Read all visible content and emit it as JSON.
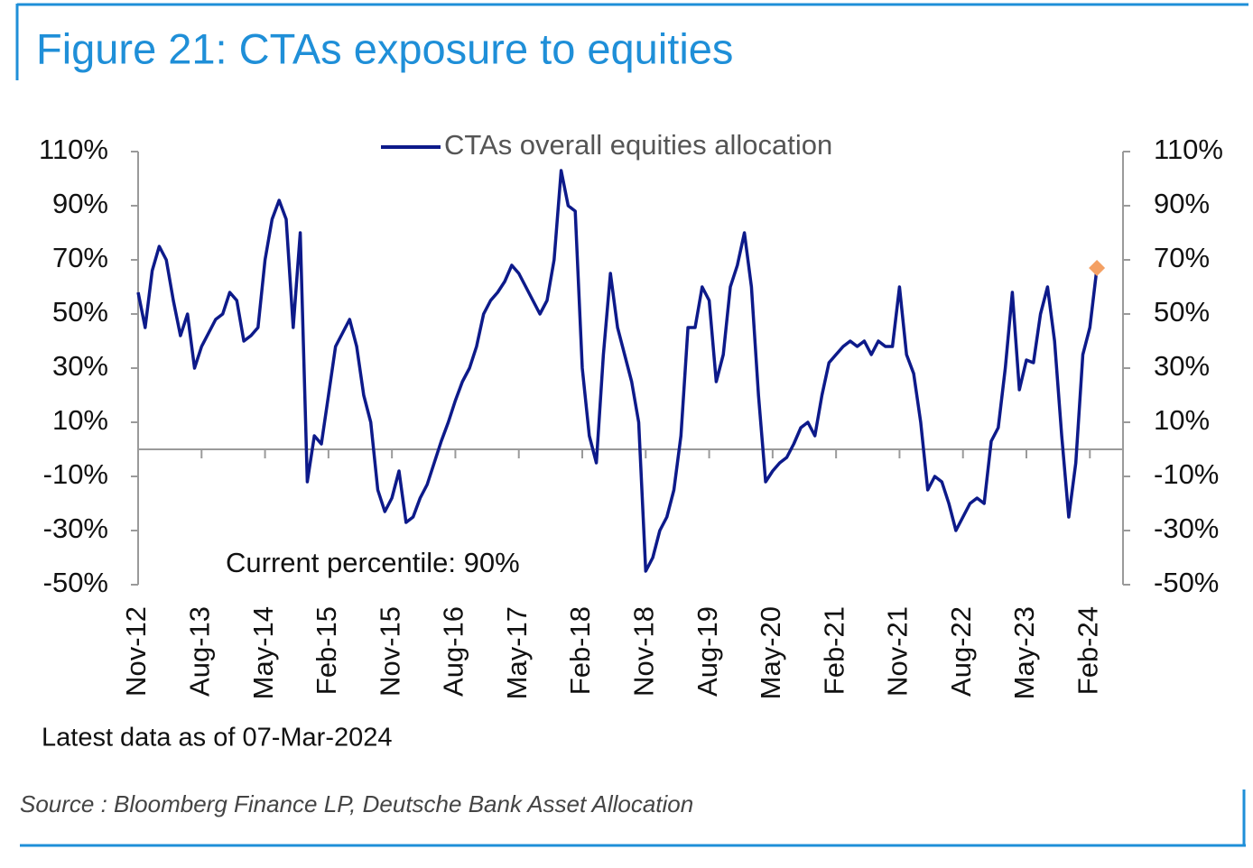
{
  "chart_data": {
    "type": "line",
    "title": "Figure 21: CTAs exposure to equities",
    "annotations": [
      "Current percentile: 90%",
      "Latest data as of 07-Mar-2024"
    ],
    "source": "Source : Bloomberg Finance LP, Deutsche Bank Asset Allocation",
    "categories": [
      "Nov-12",
      null,
      null,
      null,
      null,
      null,
      null,
      null,
      null,
      "Aug-13",
      null,
      null,
      null,
      null,
      null,
      null,
      null,
      null,
      "May-14",
      null,
      null,
      null,
      null,
      null,
      null,
      null,
      null,
      "Feb-15",
      null,
      null,
      null,
      null,
      null,
      null,
      null,
      null,
      "Nov-15",
      null,
      null,
      null,
      null,
      null,
      null,
      null,
      null,
      "Aug-16",
      null,
      null,
      null,
      null,
      null,
      null,
      null,
      null,
      "May-17",
      null,
      null,
      null,
      null,
      null,
      null,
      null,
      null,
      "Feb-18",
      null,
      null,
      null,
      null,
      null,
      null,
      null,
      null,
      "Nov-18",
      null,
      null,
      null,
      null,
      null,
      null,
      null,
      null,
      "Aug-19",
      null,
      null,
      null,
      null,
      null,
      null,
      null,
      null,
      "May-20",
      null,
      null,
      null,
      null,
      null,
      null,
      null,
      null,
      "Feb-21",
      null,
      null,
      null,
      null,
      null,
      null,
      null,
      null,
      "Nov-21",
      null,
      null,
      null,
      null,
      null,
      null,
      null,
      null,
      "Aug-22",
      null,
      null,
      null,
      null,
      null,
      null,
      null,
      null,
      "May-23",
      null,
      null,
      null,
      null,
      null,
      null,
      null,
      null,
      "Feb-24",
      null
    ],
    "series": [
      {
        "name": "CTAs overall equities allocation",
        "color": "#0d1a8a",
        "last_point_color": "#f4a063",
        "values": [
          58,
          45,
          66,
          75,
          70,
          55,
          42,
          50,
          30,
          38,
          43,
          48,
          50,
          58,
          55,
          40,
          42,
          45,
          70,
          85,
          92,
          85,
          45,
          80,
          -12,
          5,
          2,
          20,
          38,
          43,
          48,
          38,
          20,
          10,
          -15,
          -23,
          -18,
          -8,
          -27,
          -25,
          -18,
          -13,
          -5,
          3,
          10,
          18,
          25,
          30,
          38,
          50,
          55,
          58,
          62,
          68,
          65,
          60,
          55,
          50,
          55,
          70,
          103,
          90,
          88,
          30,
          5,
          -5,
          35,
          65,
          45,
          35,
          25,
          10,
          -45,
          -40,
          -30,
          -25,
          -15,
          5,
          45,
          45,
          60,
          55,
          25,
          35,
          60,
          68,
          80,
          60,
          20,
          -12,
          -8,
          -5,
          -3,
          2,
          8,
          10,
          5,
          20,
          32,
          35,
          38,
          40,
          38,
          40,
          35,
          40,
          38,
          38,
          60,
          35,
          28,
          10,
          -15,
          -10,
          -12,
          -20,
          -30,
          -25,
          -20,
          -18,
          -20,
          3,
          8,
          30,
          58,
          22,
          33,
          32,
          50,
          60,
          40,
          5,
          -25,
          -5,
          35,
          45,
          67
        ]
      }
    ],
    "ylim": [
      -50,
      110
    ],
    "yticks": [
      {
        "value": -50,
        "label": "-50%"
      },
      {
        "value": -30,
        "label": "-30%"
      },
      {
        "value": -10,
        "label": "-10%"
      },
      {
        "value": 10,
        "label": "10%"
      },
      {
        "value": 30,
        "label": "30%"
      },
      {
        "value": 50,
        "label": "50%"
      },
      {
        "value": 70,
        "label": "70%"
      },
      {
        "value": 90,
        "label": "90%"
      },
      {
        "value": 110,
        "label": "110%"
      }
    ],
    "y2lim": [
      -50,
      110
    ],
    "y2ticks": [
      {
        "value": -50,
        "label": "-50%"
      },
      {
        "value": -30,
        "label": "-30%"
      },
      {
        "value": -10,
        "label": "-10%"
      },
      {
        "value": 10,
        "label": "10%"
      },
      {
        "value": 30,
        "label": "30%"
      },
      {
        "value": 50,
        "label": "50%"
      },
      {
        "value": 70,
        "label": "70%"
      },
      {
        "value": 90,
        "label": "90%"
      },
      {
        "value": 110,
        "label": "110%"
      }
    ],
    "legend": "top",
    "grid": false
  }
}
